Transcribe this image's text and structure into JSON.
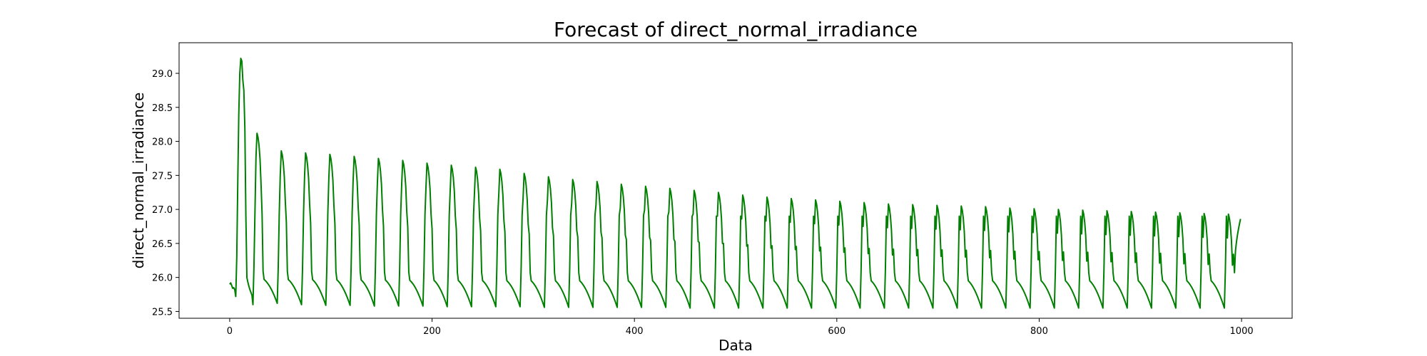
{
  "chart_data": {
    "type": "line",
    "title": "Forecast of direct_normal_irradiance",
    "xlabel": "Data",
    "ylabel": "direct_normal_irradiance",
    "xlim": [
      -50,
      1050
    ],
    "ylim": [
      25.4,
      29.45
    ],
    "xticks": [
      0,
      200,
      400,
      600,
      800,
      1000
    ],
    "yticks": [
      25.5,
      26.0,
      26.5,
      27.0,
      27.5,
      28.0,
      28.5,
      29.0
    ],
    "grid": false,
    "legend": "none",
    "series": [
      {
        "color": "#008000",
        "period": 24,
        "length": 1000,
        "start_values": [
          25.9,
          25.92,
          25.88,
          25.84,
          25.85,
          25.82,
          25.72,
          26.3,
          27.4,
          28.4,
          29.0,
          29.22,
          29.18,
          28.9,
          28.75,
          28.2,
          26.9,
          26.0,
          25.93,
          25.87,
          25.82,
          25.78,
          25.74,
          25.6
        ],
        "cycle_peaks": [
          28.12,
          27.86,
          27.83,
          27.81,
          27.78,
          27.75,
          27.72,
          27.68,
          27.65,
          27.62,
          27.59,
          27.53,
          27.48,
          27.44,
          27.41,
          27.37,
          27.34,
          27.31,
          27.28,
          27.25,
          27.21,
          27.18,
          27.16,
          27.14,
          27.12,
          27.1,
          27.08,
          27.07,
          27.06,
          27.05,
          27.04,
          27.02,
          27.01,
          27.0,
          26.99,
          26.98,
          26.97,
          26.96,
          26.95,
          26.94,
          26.93
        ],
        "cycle_troughs": [
          25.62,
          25.6,
          25.59,
          25.59,
          25.58,
          25.58,
          25.58,
          25.57,
          25.57,
          25.57,
          25.57,
          25.56,
          25.56,
          25.56,
          25.56,
          25.56,
          25.56,
          25.55,
          25.55,
          25.55,
          25.55,
          25.55,
          25.55,
          25.55,
          25.55,
          25.55,
          25.55,
          25.55,
          25.55,
          25.55,
          25.55,
          25.55,
          25.55,
          25.55,
          25.55,
          25.55,
          25.55,
          25.55,
          25.55,
          25.55,
          25.55
        ],
        "end_value": 26.86
      }
    ]
  }
}
